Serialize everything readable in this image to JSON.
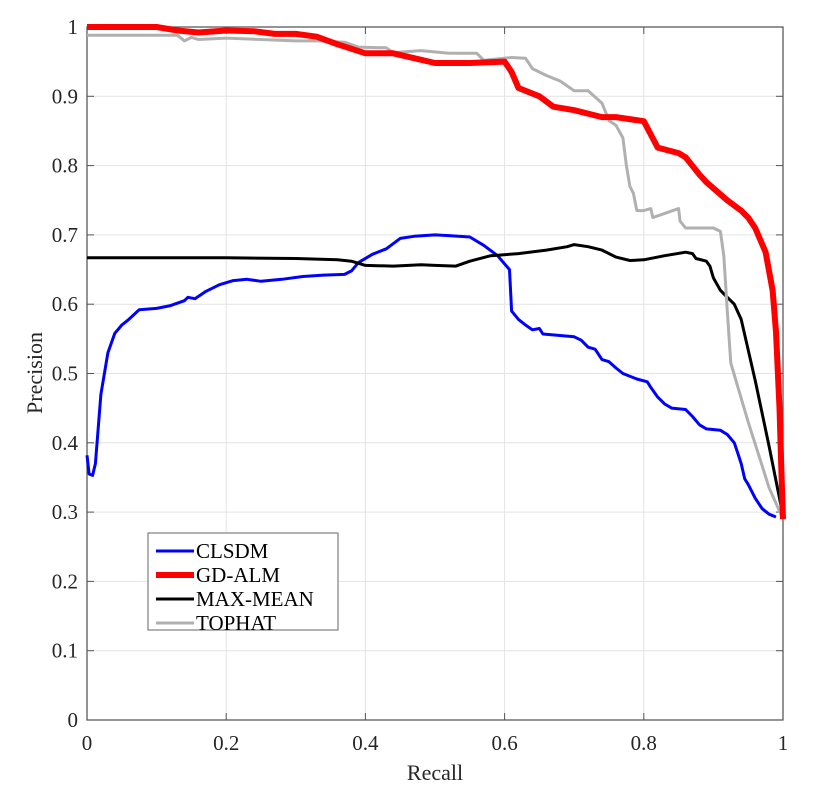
{
  "chart_data": {
    "type": "line",
    "title": "",
    "xlabel": "Recall",
    "ylabel": "Precision",
    "xlim": [
      0,
      1
    ],
    "ylim": [
      0,
      1
    ],
    "grid": true,
    "legend_position": "lower left (inside)",
    "xticks": [
      "0",
      "0.2",
      "0.4",
      "0.6",
      "0.8",
      "1"
    ],
    "yticks": [
      "0",
      "0.1",
      "0.2",
      "0.3",
      "0.4",
      "0.5",
      "0.6",
      "0.7",
      "0.8",
      "0.9",
      "1"
    ],
    "series": [
      {
        "name": "CLSDM",
        "color": "#0000ff",
        "width": 3,
        "points": [
          [
            0.0,
            0.382
          ],
          [
            0.003,
            0.355
          ],
          [
            0.008,
            0.353
          ],
          [
            0.012,
            0.37
          ],
          [
            0.02,
            0.47
          ],
          [
            0.03,
            0.53
          ],
          [
            0.04,
            0.558
          ],
          [
            0.05,
            0.57
          ],
          [
            0.06,
            0.578
          ],
          [
            0.075,
            0.592
          ],
          [
            0.1,
            0.594
          ],
          [
            0.12,
            0.598
          ],
          [
            0.14,
            0.605
          ],
          [
            0.145,
            0.61
          ],
          [
            0.155,
            0.608
          ],
          [
            0.17,
            0.618
          ],
          [
            0.19,
            0.628
          ],
          [
            0.21,
            0.634
          ],
          [
            0.23,
            0.636
          ],
          [
            0.25,
            0.633
          ],
          [
            0.28,
            0.636
          ],
          [
            0.31,
            0.64
          ],
          [
            0.34,
            0.642
          ],
          [
            0.37,
            0.643
          ],
          [
            0.38,
            0.648
          ],
          [
            0.39,
            0.66
          ],
          [
            0.41,
            0.672
          ],
          [
            0.43,
            0.68
          ],
          [
            0.45,
            0.695
          ],
          [
            0.47,
            0.698
          ],
          [
            0.5,
            0.7
          ],
          [
            0.52,
            0.699
          ],
          [
            0.55,
            0.697
          ],
          [
            0.57,
            0.685
          ],
          [
            0.59,
            0.67
          ],
          [
            0.607,
            0.65
          ],
          [
            0.61,
            0.59
          ],
          [
            0.62,
            0.578
          ],
          [
            0.63,
            0.57
          ],
          [
            0.64,
            0.563
          ],
          [
            0.65,
            0.565
          ],
          [
            0.655,
            0.557
          ],
          [
            0.7,
            0.553
          ],
          [
            0.71,
            0.548
          ],
          [
            0.72,
            0.538
          ],
          [
            0.73,
            0.535
          ],
          [
            0.74,
            0.52
          ],
          [
            0.75,
            0.517
          ],
          [
            0.76,
            0.508
          ],
          [
            0.77,
            0.5
          ],
          [
            0.79,
            0.492
          ],
          [
            0.805,
            0.488
          ],
          [
            0.81,
            0.48
          ],
          [
            0.82,
            0.466
          ],
          [
            0.83,
            0.456
          ],
          [
            0.84,
            0.45
          ],
          [
            0.86,
            0.448
          ],
          [
            0.87,
            0.438
          ],
          [
            0.88,
            0.426
          ],
          [
            0.89,
            0.42
          ],
          [
            0.91,
            0.418
          ],
          [
            0.92,
            0.412
          ],
          [
            0.93,
            0.4
          ],
          [
            0.935,
            0.385
          ],
          [
            0.94,
            0.37
          ],
          [
            0.945,
            0.348
          ],
          [
            0.95,
            0.34
          ],
          [
            0.96,
            0.32
          ],
          [
            0.97,
            0.305
          ],
          [
            0.98,
            0.297
          ],
          [
            0.99,
            0.293
          ]
        ]
      },
      {
        "name": "GD-ALM",
        "color": "#ff0000",
        "width": 6,
        "points": [
          [
            0.0,
            1.0
          ],
          [
            0.1,
            1.0
          ],
          [
            0.13,
            0.995
          ],
          [
            0.16,
            0.992
          ],
          [
            0.2,
            0.995
          ],
          [
            0.24,
            0.994
          ],
          [
            0.27,
            0.99
          ],
          [
            0.3,
            0.99
          ],
          [
            0.33,
            0.986
          ],
          [
            0.36,
            0.975
          ],
          [
            0.4,
            0.962
          ],
          [
            0.44,
            0.962
          ],
          [
            0.47,
            0.955
          ],
          [
            0.5,
            0.948
          ],
          [
            0.55,
            0.948
          ],
          [
            0.6,
            0.95
          ],
          [
            0.61,
            0.935
          ],
          [
            0.62,
            0.912
          ],
          [
            0.65,
            0.9
          ],
          [
            0.67,
            0.885
          ],
          [
            0.7,
            0.88
          ],
          [
            0.74,
            0.87
          ],
          [
            0.76,
            0.87
          ],
          [
            0.8,
            0.864
          ],
          [
            0.82,
            0.826
          ],
          [
            0.85,
            0.818
          ],
          [
            0.86,
            0.812
          ],
          [
            0.88,
            0.787
          ],
          [
            0.89,
            0.776
          ],
          [
            0.92,
            0.75
          ],
          [
            0.94,
            0.735
          ],
          [
            0.95,
            0.725
          ],
          [
            0.96,
            0.71
          ],
          [
            0.975,
            0.675
          ],
          [
            0.985,
            0.62
          ],
          [
            0.99,
            0.56
          ],
          [
            0.995,
            0.45
          ],
          [
            0.998,
            0.35
          ],
          [
            1.0,
            0.29
          ]
        ]
      },
      {
        "name": "MAX-MEAN",
        "color": "#000000",
        "width": 3,
        "points": [
          [
            0.0,
            0.667
          ],
          [
            0.1,
            0.667
          ],
          [
            0.2,
            0.667
          ],
          [
            0.3,
            0.666
          ],
          [
            0.36,
            0.664
          ],
          [
            0.38,
            0.662
          ],
          [
            0.4,
            0.656
          ],
          [
            0.44,
            0.655
          ],
          [
            0.48,
            0.657
          ],
          [
            0.5,
            0.656
          ],
          [
            0.53,
            0.655
          ],
          [
            0.55,
            0.662
          ],
          [
            0.58,
            0.67
          ],
          [
            0.62,
            0.673
          ],
          [
            0.66,
            0.678
          ],
          [
            0.69,
            0.683
          ],
          [
            0.7,
            0.686
          ],
          [
            0.72,
            0.683
          ],
          [
            0.74,
            0.678
          ],
          [
            0.76,
            0.668
          ],
          [
            0.78,
            0.663
          ],
          [
            0.8,
            0.664
          ],
          [
            0.83,
            0.67
          ],
          [
            0.86,
            0.675
          ],
          [
            0.87,
            0.673
          ],
          [
            0.875,
            0.666
          ],
          [
            0.89,
            0.662
          ],
          [
            0.895,
            0.655
          ],
          [
            0.9,
            0.638
          ],
          [
            0.91,
            0.62
          ],
          [
            0.92,
            0.61
          ],
          [
            0.93,
            0.6
          ],
          [
            0.94,
            0.578
          ],
          [
            0.96,
            0.49
          ],
          [
            0.98,
            0.395
          ],
          [
            1.0,
            0.295
          ]
        ]
      },
      {
        "name": "TOPHAT",
        "color": "#b0b0b0",
        "width": 3,
        "points": [
          [
            0.0,
            0.988
          ],
          [
            0.13,
            0.988
          ],
          [
            0.14,
            0.98
          ],
          [
            0.15,
            0.985
          ],
          [
            0.16,
            0.982
          ],
          [
            0.2,
            0.984
          ],
          [
            0.3,
            0.98
          ],
          [
            0.33,
            0.98
          ],
          [
            0.37,
            0.978
          ],
          [
            0.39,
            0.971
          ],
          [
            0.43,
            0.97
          ],
          [
            0.44,
            0.963
          ],
          [
            0.48,
            0.966
          ],
          [
            0.52,
            0.962
          ],
          [
            0.56,
            0.962
          ],
          [
            0.57,
            0.952
          ],
          [
            0.61,
            0.956
          ],
          [
            0.63,
            0.955
          ],
          [
            0.64,
            0.94
          ],
          [
            0.66,
            0.93
          ],
          [
            0.68,
            0.922
          ],
          [
            0.7,
            0.908
          ],
          [
            0.72,
            0.908
          ],
          [
            0.74,
            0.89
          ],
          [
            0.75,
            0.865
          ],
          [
            0.76,
            0.858
          ],
          [
            0.77,
            0.84
          ],
          [
            0.775,
            0.8
          ],
          [
            0.78,
            0.77
          ],
          [
            0.785,
            0.76
          ],
          [
            0.79,
            0.735
          ],
          [
            0.8,
            0.735
          ],
          [
            0.81,
            0.738
          ],
          [
            0.813,
            0.725
          ],
          [
            0.85,
            0.738
          ],
          [
            0.852,
            0.72
          ],
          [
            0.86,
            0.71
          ],
          [
            0.9,
            0.71
          ],
          [
            0.91,
            0.705
          ],
          [
            0.915,
            0.67
          ],
          [
            0.92,
            0.59
          ],
          [
            0.925,
            0.515
          ],
          [
            0.95,
            0.43
          ],
          [
            0.98,
            0.335
          ],
          [
            1.0,
            0.29
          ]
        ]
      }
    ]
  },
  "legend": {
    "items": [
      {
        "label": "CLSDM",
        "color": "#0000ff",
        "width": 3
      },
      {
        "label": "GD-ALM",
        "color": "#ff0000",
        "width": 6
      },
      {
        "label": "MAX-MEAN",
        "color": "#000000",
        "width": 3
      },
      {
        "label": "TOPHAT",
        "color": "#b0b0b0",
        "width": 3
      }
    ]
  },
  "axes": {
    "xlabel": "Recall",
    "ylabel": "Precision"
  }
}
